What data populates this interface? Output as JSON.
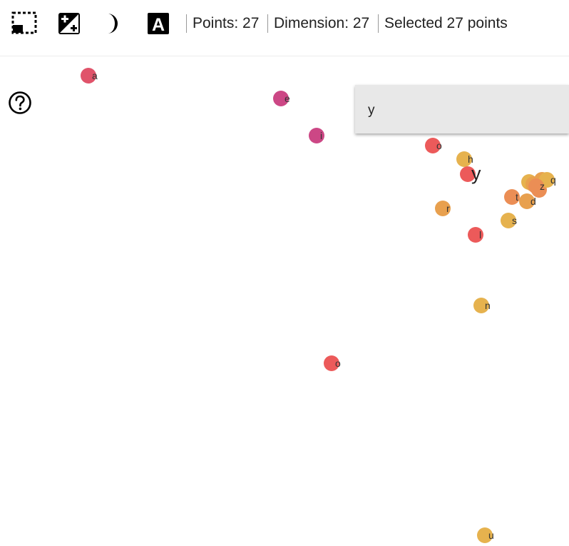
{
  "toolbar": {
    "tools": [
      {
        "name": "box-select-icon",
        "label": ""
      },
      {
        "name": "night-mode-icon",
        "label": ""
      },
      {
        "name": "crescent-moon-icon",
        "label": ""
      },
      {
        "name": "label-toggle-icon",
        "label": "A"
      }
    ],
    "points_text": "Points: 27",
    "dimension_text": "Dimension: 27",
    "selected_text": "Selected 27 points"
  },
  "search": {
    "value": "y"
  },
  "colors": {
    "red": "#ec5a5a",
    "crimson": "#e0536a",
    "magenta": "#cc4785",
    "orange": "#eb8e55",
    "amber": "#e8a04e",
    "gold": "#e6b24e"
  },
  "points": [
    {
      "label": "a",
      "color": "#e0536a"
    },
    {
      "label": "e",
      "color": "#cc4785"
    },
    {
      "label": "i",
      "color": "#cc4785"
    },
    {
      "label": "o",
      "color": "#ec5a5a"
    },
    {
      "label": "h",
      "color": "#e6b24e"
    },
    {
      "label": "y",
      "color": "#ec5a5a",
      "highlight": true
    },
    {
      "label": "q",
      "color": "#e6b24e"
    },
    {
      "label": "z",
      "color": "#eb8e55"
    },
    {
      "label": "t",
      "color": "#eb8e55"
    },
    {
      "label": "d",
      "color": "#e8a04e"
    },
    {
      "label": "r",
      "color": "#e8a04e"
    },
    {
      "label": "s",
      "color": "#e6b24e"
    },
    {
      "label": "l",
      "color": "#ec5a5a"
    },
    {
      "label": "n",
      "color": "#e6b24e"
    },
    {
      "label": "o",
      "color": "#ec5a5a"
    },
    {
      "label": "u",
      "color": "#e6b24e"
    }
  ]
}
